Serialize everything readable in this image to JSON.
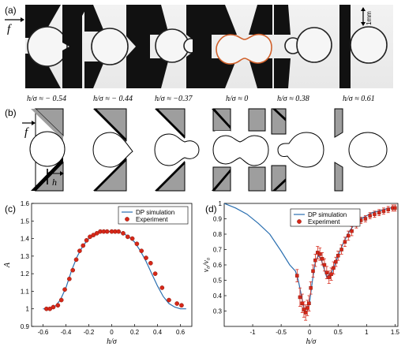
{
  "panels": {
    "a": {
      "label": "(a)",
      "force_label": "f",
      "scale_label": "1mm"
    },
    "b": {
      "label": "(b)",
      "force_label": "f",
      "h_label": "h"
    },
    "c": {
      "label": "(c)"
    },
    "d": {
      "label": "(d)"
    }
  },
  "h_labels": [
    "h/σ ≈ − 0.54",
    "h/σ ≈ − 0.44",
    "h/σ ≈ −0.37",
    "h/σ ≈ 0",
    "h/σ ≈ 0.38",
    "h/σ ≈ 0.61"
  ],
  "colors": {
    "simulation": "#2a6fb0",
    "experiment": "#d62718",
    "wedge_photo": "#111111",
    "wedge_sim": "#9e9e9e"
  },
  "chart_data": [
    {
      "type": "line",
      "panel": "c",
      "xlabel": "h/σ",
      "ylabel": "A",
      "xlim": [
        -0.7,
        0.7
      ],
      "ylim": [
        0.9,
        1.6
      ],
      "xticks": [
        "-0.6",
        "-0.4",
        "-0.2",
        "0",
        "0.2",
        "0.4",
        "0.6"
      ],
      "yticks": [
        "0.9",
        "1",
        "1.1",
        "1.2",
        "1.3",
        "1.4",
        "1.5",
        "1.6"
      ],
      "legend": [
        "DP simulation",
        "Experiment"
      ],
      "legend_position": "top-right",
      "series": [
        {
          "name": "DP simulation",
          "style": "line",
          "x": [
            -0.6,
            -0.55,
            -0.5,
            -0.45,
            -0.4,
            -0.35,
            -0.3,
            -0.25,
            -0.2,
            -0.15,
            -0.1,
            -0.05,
            0,
            0.05,
            0.1,
            0.15,
            0.2,
            0.25,
            0.3,
            0.35,
            0.4,
            0.45,
            0.5,
            0.55,
            0.6,
            0.65
          ],
          "y": [
            1.0,
            1.0,
            1.01,
            1.05,
            1.12,
            1.22,
            1.3,
            1.36,
            1.4,
            1.42,
            1.44,
            1.44,
            1.44,
            1.44,
            1.43,
            1.41,
            1.38,
            1.33,
            1.27,
            1.2,
            1.13,
            1.07,
            1.03,
            1.01,
            1.0,
            1.0
          ]
        },
        {
          "name": "Experiment",
          "style": "markers",
          "x": [
            -0.57,
            -0.54,
            -0.51,
            -0.47,
            -0.44,
            -0.41,
            -0.37,
            -0.34,
            -0.31,
            -0.28,
            -0.25,
            -0.22,
            -0.19,
            -0.16,
            -0.13,
            -0.1,
            -0.07,
            -0.04,
            0,
            0.03,
            0.06,
            0.1,
            0.14,
            0.18,
            0.22,
            0.26,
            0.3,
            0.34,
            0.38,
            0.44,
            0.5,
            0.57,
            0.61
          ],
          "y": [
            1.0,
            1.0,
            1.01,
            1.02,
            1.05,
            1.11,
            1.17,
            1.22,
            1.28,
            1.33,
            1.36,
            1.39,
            1.41,
            1.42,
            1.43,
            1.44,
            1.44,
            1.44,
            1.44,
            1.44,
            1.44,
            1.43,
            1.41,
            1.4,
            1.37,
            1.33,
            1.29,
            1.26,
            1.2,
            1.12,
            1.05,
            1.03,
            1.02
          ]
        }
      ]
    },
    {
      "type": "line",
      "panel": "d",
      "xlabel": "h/σ",
      "ylabel": "v₀/v₀",
      "xlim": [
        -1.5,
        1.55
      ],
      "ylim": [
        0.2,
        1.0
      ],
      "xticks": [
        "-1",
        "-0.5",
        "0",
        "0.5",
        "1",
        "1.5"
      ],
      "yticks": [
        "0.3",
        "0.4",
        "0.5",
        "0.6",
        "0.7",
        "0.8",
        "0.9",
        "1"
      ],
      "legend": [
        "DP simulation",
        "Experiment"
      ],
      "legend_position": "top-right",
      "series": [
        {
          "name": "DP simulation",
          "style": "line",
          "x": [
            -1.5,
            -1.3,
            -1.1,
            -0.9,
            -0.7,
            -0.5,
            -0.35,
            -0.25,
            -0.2,
            -0.15,
            -0.1,
            -0.05,
            0,
            0.05,
            0.1,
            0.15,
            0.2,
            0.25,
            0.3,
            0.4,
            0.5,
            0.6,
            0.7,
            0.8,
            0.9,
            1.0,
            1.1,
            1.2,
            1.3,
            1.4,
            1.5
          ],
          "y": [
            1.0,
            0.97,
            0.93,
            0.87,
            0.8,
            0.69,
            0.6,
            0.56,
            0.5,
            0.41,
            0.32,
            0.29,
            0.36,
            0.5,
            0.62,
            0.66,
            0.64,
            0.58,
            0.52,
            0.56,
            0.66,
            0.75,
            0.82,
            0.87,
            0.9,
            0.92,
            0.94,
            0.95,
            0.96,
            0.97,
            0.97
          ]
        },
        {
          "name": "Experiment",
          "style": "markers",
          "x": [
            -0.22,
            -0.17,
            -0.13,
            -0.1,
            -0.07,
            -0.04,
            -0.01,
            0.02,
            0.06,
            0.1,
            0.14,
            0.18,
            0.22,
            0.26,
            0.3,
            0.34,
            0.38,
            0.42,
            0.46,
            0.5,
            0.56,
            0.62,
            0.68,
            0.74,
            0.82,
            0.9,
            0.98,
            1.06,
            1.14,
            1.22,
            1.3,
            1.38,
            1.46,
            1.5
          ],
          "y": [
            0.53,
            0.39,
            0.35,
            0.31,
            0.29,
            0.32,
            0.35,
            0.45,
            0.56,
            0.63,
            0.68,
            0.67,
            0.64,
            0.6,
            0.55,
            0.52,
            0.54,
            0.58,
            0.62,
            0.66,
            0.7,
            0.75,
            0.79,
            0.82,
            0.86,
            0.89,
            0.9,
            0.92,
            0.93,
            0.94,
            0.95,
            0.96,
            0.97,
            0.97
          ],
          "err": [
            0.04,
            0.06,
            0.06,
            0.05,
            0.05,
            0.05,
            0.05,
            0.04,
            0.04,
            0.04,
            0.04,
            0.04,
            0.04,
            0.04,
            0.04,
            0.04,
            0.04,
            0.04,
            0.03,
            0.03,
            0.03,
            0.03,
            0.03,
            0.03,
            0.02,
            0.02,
            0.02,
            0.02,
            0.02,
            0.02,
            0.02,
            0.02,
            0.02,
            0.02
          ]
        }
      ]
    }
  ]
}
